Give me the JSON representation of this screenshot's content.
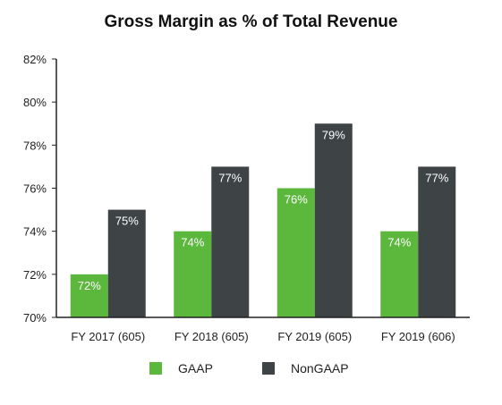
{
  "chart_data": {
    "type": "bar",
    "title": "Gross Margin as % of Total Revenue",
    "categories": [
      "FY 2017 (605)",
      "FY 2018 (605)",
      "FY 2019 (605)",
      "FY 2019 (606)"
    ],
    "series": [
      {
        "name": "GAAP",
        "values": [
          72,
          74,
          76,
          74
        ],
        "color": "#5cb83c",
        "labels": [
          "72%",
          "74%",
          "76%",
          "74%"
        ]
      },
      {
        "name": "NonGAAP",
        "values": [
          75,
          77,
          79,
          77
        ],
        "color": "#3e4446",
        "labels": [
          "75%",
          "77%",
          "79%",
          "77%"
        ]
      }
    ],
    "ylim": [
      70,
      82
    ],
    "yticks": [
      70,
      72,
      74,
      76,
      78,
      80,
      82
    ],
    "ytick_labels": [
      "70%",
      "72%",
      "74%",
      "76%",
      "78%",
      "80%",
      "82%"
    ],
    "grid": false,
    "legend_position": "bottom"
  }
}
